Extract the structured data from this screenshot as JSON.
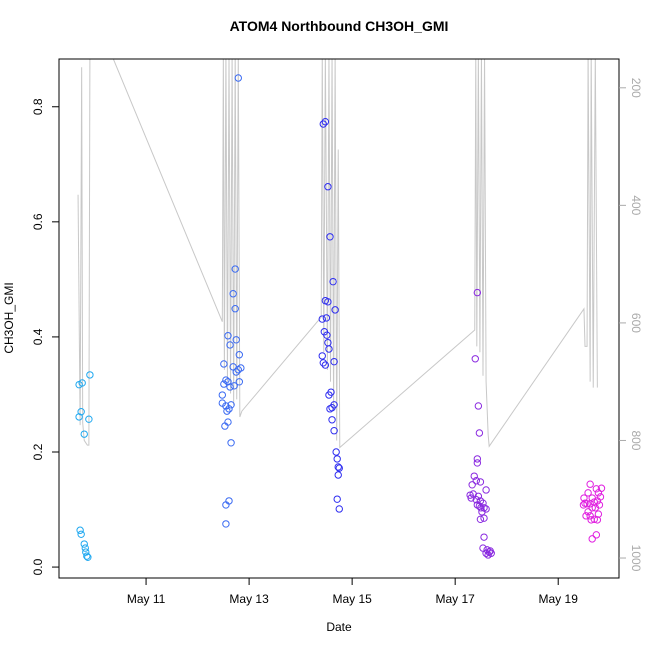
{
  "chart_data": {
    "type": "scatter",
    "title": "ATOM4 Northbound CH3OH_GMI",
    "x_label": "Date",
    "y_label": "CH3OH_GMI",
    "xlim": [
      9.31,
      20.18
    ],
    "xticks": [
      {
        "value": 11,
        "label": "May 11"
      },
      {
        "value": 13,
        "label": "May 13"
      },
      {
        "value": 15,
        "label": "May 15"
      },
      {
        "value": 17,
        "label": "May 17"
      },
      {
        "value": 19,
        "label": "May 19"
      }
    ],
    "ylim": [
      -0.019,
      0.883
    ],
    "yticks": [
      {
        "value": 0,
        "label": "0.0"
      },
      0.2,
      0.4,
      0.6,
      0.8
    ],
    "y2lim": [
      1034,
      151
    ],
    "y2ticks": [
      200,
      400,
      600,
      800,
      1000
    ],
    "series": [
      {
        "color": "#c8c8c8",
        "type": "line",
        "axis": "y2",
        "x": [
          9.68,
          9.72,
          9.75,
          9.77,
          9.8,
          9.86,
          9.89,
          9.91,
          10.36,
          12.48,
          12.5,
          12.52,
          12.55,
          12.58,
          12.61,
          12.64,
          12.67,
          12.7,
          12.73,
          12.76,
          12.79,
          12.82,
          12.86,
          14.4,
          14.42,
          14.45,
          14.48,
          14.52,
          14.55,
          14.58,
          14.61,
          14.64,
          14.67,
          14.7,
          14.73,
          14.76,
          17.38,
          17.4,
          17.42,
          17.45,
          17.48,
          17.51,
          17.54,
          17.57,
          17.6,
          17.64,
          17.66,
          19.5,
          19.52,
          19.56,
          19.58,
          19.62,
          19.64,
          19.68,
          19.72,
          19.76
        ],
        "values": [
          382,
          774,
          165,
          770,
          800,
          808,
          808,
          140,
          150,
          598,
          140,
          680,
          140,
          700,
          140,
          720,
          140,
          740,
          140,
          730,
          140,
          760,
          750,
          590,
          140,
          650,
          140,
          680,
          140,
          700,
          140,
          750,
          140,
          800,
          305,
          812,
          612,
          140,
          640,
          140,
          650,
          140,
          690,
          140,
          700,
          790,
          810,
          576,
          640,
          640,
          140,
          700,
          140,
          710,
          140,
          710
        ]
      },
      {
        "color": "#1fa8f0",
        "type": "scatter",
        "x": [
          9.7,
          9.76,
          9.91,
          9.74,
          9.7,
          9.89,
          9.8,
          9.72,
          9.74,
          9.8,
          9.82,
          9.83,
          9.85,
          9.87
        ],
        "values": [
          0.317,
          0.32,
          0.334,
          0.27,
          0.261,
          0.257,
          0.231,
          0.064,
          0.057,
          0.04,
          0.033,
          0.026,
          0.019,
          0.017
        ]
      },
      {
        "color": "#3a6af2",
        "type": "scatter",
        "x": [
          12.79,
          12.73,
          12.69,
          12.73,
          12.59,
          12.75,
          12.63,
          12.81,
          12.51,
          12.69,
          12.84,
          12.75,
          12.79,
          12.55,
          12.51,
          12.59,
          12.81,
          12.48,
          12.71,
          12.63,
          12.48,
          12.55,
          12.65,
          12.61,
          12.57,
          12.59,
          12.53,
          12.65,
          12.61,
          12.55,
          12.55
        ],
        "values": [
          0.85,
          0.518,
          0.475,
          0.449,
          0.402,
          0.395,
          0.386,
          0.369,
          0.353,
          0.348,
          0.346,
          0.339,
          0.343,
          0.325,
          0.318,
          0.322,
          0.322,
          0.299,
          0.315,
          0.313,
          0.285,
          0.28,
          0.282,
          0.275,
          0.271,
          0.252,
          0.245,
          0.216,
          0.115,
          0.108,
          0.075
        ]
      },
      {
        "color": "#2d2cf0",
        "type": "scatter",
        "x": [
          14.48,
          14.44,
          14.53,
          14.57,
          14.63,
          14.42,
          14.5,
          14.48,
          14.53,
          14.67,
          14.46,
          14.51,
          14.53,
          14.55,
          14.42,
          14.44,
          14.48,
          14.65,
          14.59,
          14.55,
          14.65,
          14.61,
          14.57,
          14.61,
          14.65,
          14.69,
          14.71,
          14.73,
          14.75,
          14.73,
          14.71,
          14.75
        ],
        "values": [
          0.774,
          0.77,
          0.661,
          0.574,
          0.496,
          0.431,
          0.433,
          0.463,
          0.461,
          0.447,
          0.409,
          0.403,
          0.39,
          0.379,
          0.367,
          0.355,
          0.351,
          0.357,
          0.304,
          0.299,
          0.282,
          0.277,
          0.275,
          0.256,
          0.237,
          0.2,
          0.188,
          0.174,
          0.172,
          0.16,
          0.118,
          0.101
        ]
      },
      {
        "color": "#8a2ae0",
        "type": "scatter",
        "x": [
          17.43,
          17.39,
          17.45,
          17.47,
          17.43,
          17.43,
          17.37,
          17.49,
          17.33,
          17.41,
          17.6,
          17.35,
          17.29,
          17.45,
          17.31,
          17.41,
          17.49,
          17.54,
          17.43,
          17.47,
          17.5,
          17.56,
          17.6,
          17.52,
          17.56,
          17.49,
          17.56,
          17.54,
          17.62,
          17.6,
          17.68,
          17.64,
          17.7,
          17.66
        ],
        "values": [
          0.477,
          0.362,
          0.28,
          0.233,
          0.188,
          0.181,
          0.158,
          0.148,
          0.143,
          0.15,
          0.134,
          0.127,
          0.125,
          0.123,
          0.12,
          0.117,
          0.115,
          0.111,
          0.108,
          0.106,
          0.103,
          0.103,
          0.101,
          0.096,
          0.085,
          0.083,
          0.052,
          0.033,
          0.03,
          0.024,
          0.028,
          0.021,
          0.024,
          0.026
        ]
      },
      {
        "color": "#e020e0",
        "type": "scatter",
        "x": [
          19.62,
          19.74,
          19.78,
          19.58,
          19.5,
          19.66,
          19.82,
          19.52,
          19.56,
          19.62,
          19.7,
          19.76,
          19.8,
          19.49,
          19.66,
          19.72,
          19.58,
          19.62,
          19.78,
          19.54,
          19.7,
          19.64,
          19.76,
          19.74,
          19.66,
          19.84
        ],
        "values": [
          0.144,
          0.136,
          0.129,
          0.129,
          0.12,
          0.12,
          0.122,
          0.111,
          0.11,
          0.11,
          0.113,
          0.115,
          0.108,
          0.108,
          0.103,
          0.103,
          0.096,
          0.089,
          0.092,
          0.089,
          0.083,
          0.082,
          0.082,
          0.056,
          0.049,
          0.137
        ]
      }
    ]
  }
}
